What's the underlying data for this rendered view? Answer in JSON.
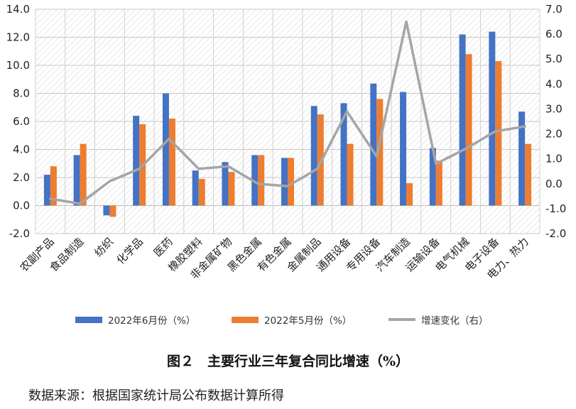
{
  "chart_data": {
    "type": "bar",
    "categories": [
      "农副产品",
      "食品制造",
      "纺织",
      "化学品",
      "医药",
      "橡胶塑料",
      "非金属矿物",
      "黑色金属",
      "有色金属",
      "金属制品",
      "通用设备",
      "专用设备",
      "汽车制造",
      "运输设备",
      "电气机械",
      "电子设备",
      "电力、热力"
    ],
    "series": [
      {
        "name": "2022年6月份（%）",
        "type": "bar",
        "axis": "left",
        "color": "#4472C4",
        "values": [
          2.2,
          3.6,
          -0.7,
          6.4,
          8.0,
          2.5,
          3.1,
          3.6,
          3.4,
          7.1,
          7.3,
          8.7,
          8.1,
          4.1,
          12.2,
          12.4,
          6.7
        ]
      },
      {
        "name": "2022年5月份（%）",
        "type": "bar",
        "axis": "left",
        "color": "#ED7D31",
        "values": [
          2.8,
          4.4,
          -0.8,
          5.8,
          6.2,
          1.9,
          2.4,
          3.6,
          3.4,
          6.5,
          4.4,
          7.6,
          1.6,
          3.2,
          10.8,
          10.3,
          4.4
        ]
      },
      {
        "name": "增速变化（右）",
        "type": "line",
        "axis": "right",
        "color": "#A5A5A5",
        "values": [
          -0.6,
          -0.8,
          0.1,
          0.6,
          1.8,
          0.6,
          0.7,
          0.0,
          -0.1,
          0.6,
          2.9,
          1.1,
          6.5,
          0.8,
          1.4,
          2.1,
          2.3
        ]
      }
    ],
    "y_left": {
      "min": -2.0,
      "max": 14.0,
      "step": 2.0,
      "ticks": [
        "-2.0",
        "0.0",
        "2.0",
        "4.0",
        "6.0",
        "8.0",
        "10.0",
        "12.0",
        "14.0"
      ]
    },
    "y_right": {
      "min": -2.0,
      "max": 7.0,
      "step": 1.0,
      "ticks": [
        "-2.0",
        "-1.0",
        "0.0",
        "1.0",
        "2.0",
        "3.0",
        "4.0",
        "5.0",
        "6.0",
        "7.0"
      ]
    },
    "grid": true,
    "legend_position": "bottom",
    "title": "图２　主要行业三年复合同比增速（%）",
    "source": "数据来源：根据国家统计局公布数据计算所得"
  }
}
